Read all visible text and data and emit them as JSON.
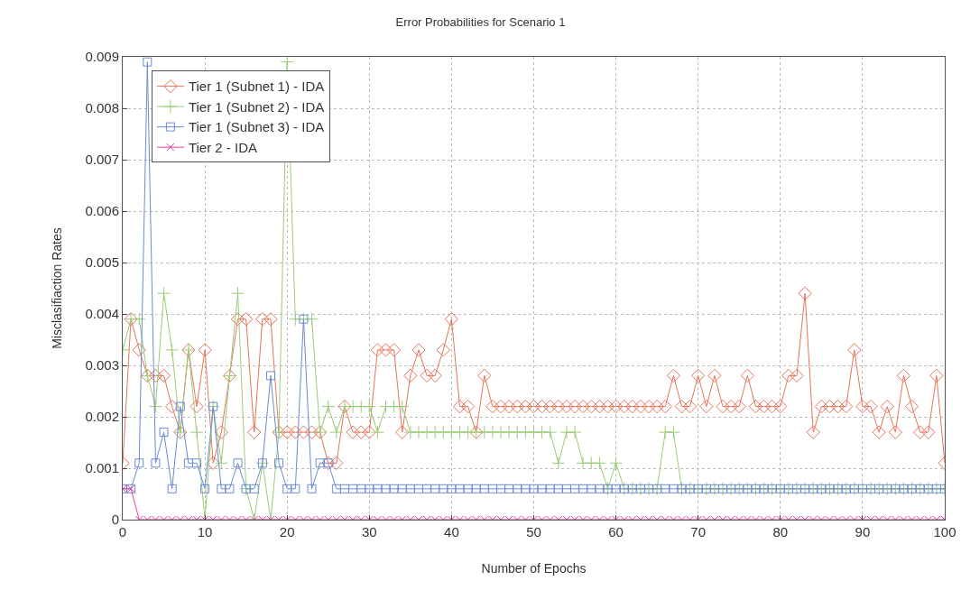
{
  "chart_data": {
    "type": "line",
    "title": "Error Probabilities for Scenario 1",
    "xlabel": "Number of Epochs",
    "ylabel": "Misclasifiaction Rates",
    "x": [
      0,
      1,
      2,
      3,
      4,
      5,
      6,
      7,
      8,
      9,
      10,
      11,
      12,
      13,
      14,
      15,
      16,
      17,
      18,
      19,
      20,
      21,
      22,
      23,
      24,
      25,
      26,
      27,
      28,
      29,
      30,
      31,
      32,
      33,
      34,
      35,
      36,
      37,
      38,
      39,
      40,
      41,
      42,
      43,
      44,
      45,
      46,
      47,
      48,
      49,
      50,
      51,
      52,
      53,
      54,
      55,
      56,
      57,
      58,
      59,
      60,
      61,
      62,
      63,
      64,
      65,
      66,
      67,
      68,
      69,
      70,
      71,
      72,
      73,
      74,
      75,
      76,
      77,
      78,
      79,
      80,
      81,
      82,
      83,
      84,
      85,
      86,
      87,
      88,
      89,
      90,
      91,
      92,
      93,
      94,
      95,
      96,
      97,
      98,
      99,
      100
    ],
    "series": [
      {
        "name": "Tier 1 (Subnet 1) - IDA",
        "color": "#e8735a",
        "marker": "diamond",
        "values": [
          0.0011,
          0.0039,
          0.0033,
          0.0028,
          0.0028,
          0.0028,
          0.0022,
          0.0017,
          0.0033,
          0.0022,
          0.0033,
          0.0011,
          0.0017,
          0.0028,
          0.0039,
          0.0039,
          0.0017,
          0.0039,
          0.0039,
          0.0017,
          0.0017,
          0.0017,
          0.0017,
          0.0017,
          0.0017,
          0.0011,
          0.0011,
          0.0022,
          0.0017,
          0.0017,
          0.0017,
          0.0033,
          0.0033,
          0.0033,
          0.0017,
          0.0028,
          0.0033,
          0.0028,
          0.0028,
          0.0033,
          0.0039,
          0.0022,
          0.0022,
          0.0017,
          0.0028,
          0.0022,
          0.0022,
          0.0022,
          0.0022,
          0.0022,
          0.0022,
          0.0022,
          0.0022,
          0.0022,
          0.0022,
          0.0022,
          0.0022,
          0.0022,
          0.0022,
          0.0022,
          0.0022,
          0.0022,
          0.0022,
          0.0022,
          0.0022,
          0.0022,
          0.0022,
          0.0028,
          0.0022,
          0.0022,
          0.0028,
          0.0022,
          0.0028,
          0.0022,
          0.0022,
          0.0022,
          0.0028,
          0.0022,
          0.0022,
          0.0022,
          0.0022,
          0.0028,
          0.0028,
          0.0044,
          0.0017,
          0.0022,
          0.0022,
          0.0022,
          0.0022,
          0.0033,
          0.0022,
          0.0022,
          0.0017,
          0.0022,
          0.0017,
          0.0028,
          0.0022,
          0.0017,
          0.0017,
          0.0028,
          0.0011
        ]
      },
      {
        "name": "Tier 1 (Subnet 2) - IDA",
        "color": "#99cc77",
        "marker": "cross",
        "values": [
          0.0033,
          0.0039,
          0.0039,
          0.0028,
          0.0022,
          0.0044,
          0.0033,
          0.0017,
          0.0033,
          0.0017,
          0,
          0.0022,
          0.0011,
          0.0028,
          0.0044,
          0.0006,
          0,
          0.0011,
          0,
          0.0017,
          0.0089,
          0.0039,
          0.0039,
          0.0039,
          0.0017,
          0.0022,
          0.0017,
          0.0022,
          0.0022,
          0.0022,
          0.0022,
          0.0017,
          0.0022,
          0.0022,
          0.0022,
          0.0017,
          0.0017,
          0.0017,
          0.0017,
          0.0017,
          0.0017,
          0.0017,
          0.0017,
          0.0017,
          0.0017,
          0.0017,
          0.0017,
          0.0017,
          0.0017,
          0.0017,
          0.0017,
          0.0017,
          0.0017,
          0.0011,
          0.0017,
          0.0017,
          0.0011,
          0.0011,
          0.0011,
          0.0006,
          0.0011,
          0.0006,
          0.0006,
          0.0006,
          0.0006,
          0.0006,
          0.0017,
          0.0017,
          0.0006,
          0.0006,
          0.0006,
          0.0006,
          0.0006,
          0.0006,
          0.0006,
          0.0006,
          0.0006,
          0.0006,
          0.0006,
          0.0006,
          0.0006,
          0.0006,
          0.0006,
          0.0006,
          0.0006,
          0.0006,
          0.0006,
          0.0006,
          0.0006,
          0.0006,
          0.0006,
          0.0006,
          0.0006,
          0.0006,
          0.0006,
          0.0006,
          0.0006,
          0.0006,
          0.0006,
          0.0006,
          0.0006
        ]
      },
      {
        "name": "Tier 1 (Subnet 3) - IDA",
        "color": "#6a8ad8",
        "marker": "square",
        "values": [
          0.0006,
          0.0006,
          0.0011,
          0.0089,
          0.0011,
          0.0017,
          0.0006,
          0.0022,
          0.0011,
          0.0011,
          0.0006,
          0.0022,
          0.0006,
          0.0006,
          0.0011,
          0.0006,
          0.0006,
          0.0011,
          0.0028,
          0.0011,
          0.0006,
          0.0006,
          0.0039,
          0.0006,
          0.0011,
          0.0011,
          0.0006,
          0.0006,
          0.0006,
          0.0006,
          0.0006,
          0.0006,
          0.0006,
          0.0006,
          0.0006,
          0.0006,
          0.0006,
          0.0006,
          0.0006,
          0.0006,
          0.0006,
          0.0006,
          0.0006,
          0.0006,
          0.0006,
          0.0006,
          0.0006,
          0.0006,
          0.0006,
          0.0006,
          0.0006,
          0.0006,
          0.0006,
          0.0006,
          0.0006,
          0.0006,
          0.0006,
          0.0006,
          0.0006,
          0.0006,
          0.0006,
          0.0006,
          0.0006,
          0.0006,
          0.0006,
          0.0006,
          0.0006,
          0.0006,
          0.0006,
          0.0006,
          0.0006,
          0.0006,
          0.0006,
          0.0006,
          0.0006,
          0.0006,
          0.0006,
          0.0006,
          0.0006,
          0.0006,
          0.0006,
          0.0006,
          0.0006,
          0.0006,
          0.0006,
          0.0006,
          0.0006,
          0.0006,
          0.0006,
          0.0006,
          0.0006,
          0.0006,
          0.0006,
          0.0006,
          0.0006,
          0.0006,
          0.0006,
          0.0006,
          0.0006,
          0.0006,
          0.0006
        ]
      },
      {
        "name": "Tier 2 - IDA",
        "color": "#e040a0",
        "marker": "cross",
        "values": [
          0.0006,
          0.0006,
          0,
          0,
          0,
          0,
          0,
          0,
          0,
          0,
          0,
          0,
          0,
          0,
          0,
          0,
          0,
          0,
          0,
          0,
          0,
          0,
          0,
          0,
          0,
          0,
          0,
          0,
          0,
          0,
          0,
          0,
          0,
          0,
          0,
          0,
          0,
          0,
          0,
          0,
          0,
          0,
          0,
          0,
          0,
          0,
          0,
          0,
          0,
          0,
          0,
          0,
          0,
          0,
          0,
          0,
          0,
          0,
          0,
          0,
          0,
          0,
          0,
          0,
          0,
          0,
          0,
          0,
          0,
          0,
          0,
          0,
          0,
          0,
          0,
          0,
          0,
          0,
          0,
          0,
          0,
          0,
          0,
          0,
          0,
          0,
          0,
          0,
          0,
          0,
          0,
          0,
          0,
          0,
          0,
          0,
          0,
          0,
          0,
          0,
          0
        ]
      }
    ],
    "xlim": [
      0,
      100
    ],
    "xticks": [
      0,
      10,
      20,
      30,
      40,
      50,
      60,
      70,
      80,
      90,
      100
    ],
    "ylim": [
      0,
      0.009
    ],
    "yticks": [
      0,
      0.001,
      0.002,
      0.003,
      0.004,
      0.005,
      0.006,
      0.007,
      0.008,
      0.009
    ],
    "grid": true,
    "legend": "top left",
    "line_style": "solid"
  }
}
